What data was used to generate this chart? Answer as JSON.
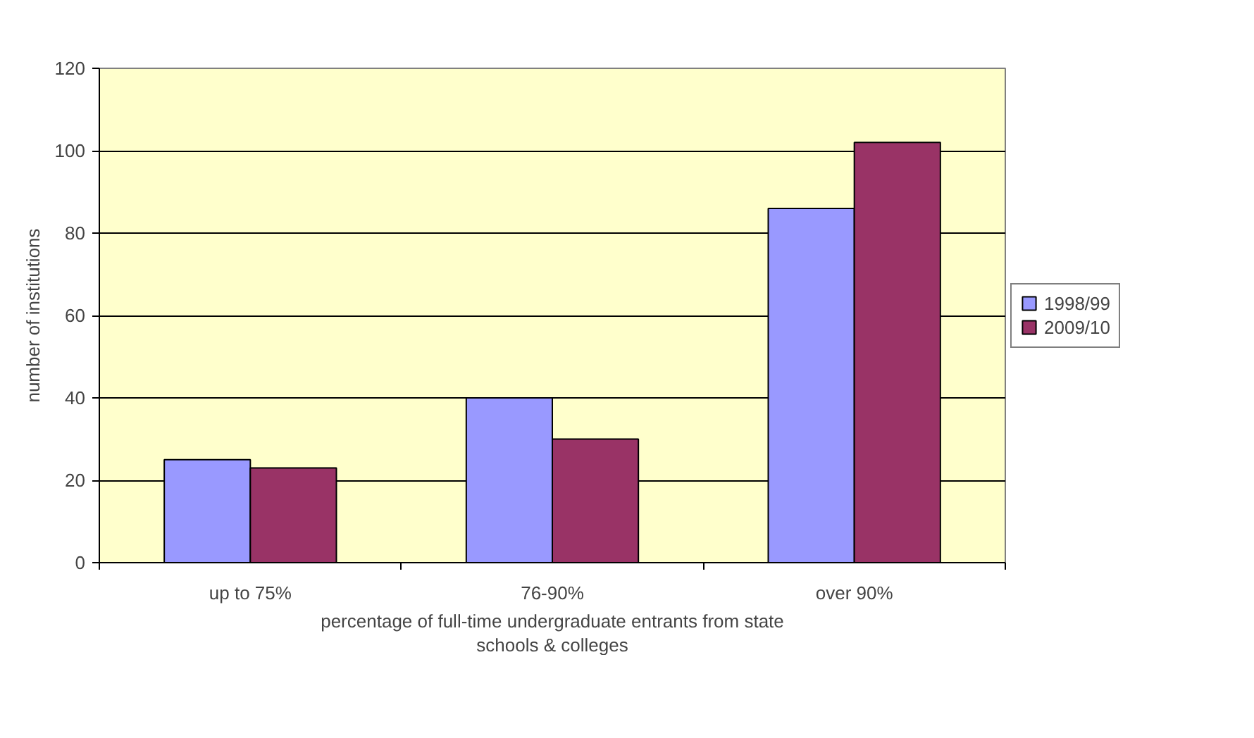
{
  "chart_data": {
    "type": "bar",
    "xlabel": "percentage of full-time undergraduate entrants from state schools & colleges",
    "ylabel": "number of institutions",
    "categories": [
      "up to 75%",
      "76-90%",
      "over 90%"
    ],
    "series": [
      {
        "name": "1998/99",
        "color": "#9999ff",
        "values": [
          25,
          40,
          86
        ]
      },
      {
        "name": "2009/10",
        "color": "#993366",
        "values": [
          23,
          30,
          102
        ]
      }
    ],
    "ylim": [
      0,
      120
    ],
    "yticks": [
      0,
      20,
      40,
      60,
      80,
      100,
      120
    ],
    "grid": "y",
    "legend": "right"
  }
}
